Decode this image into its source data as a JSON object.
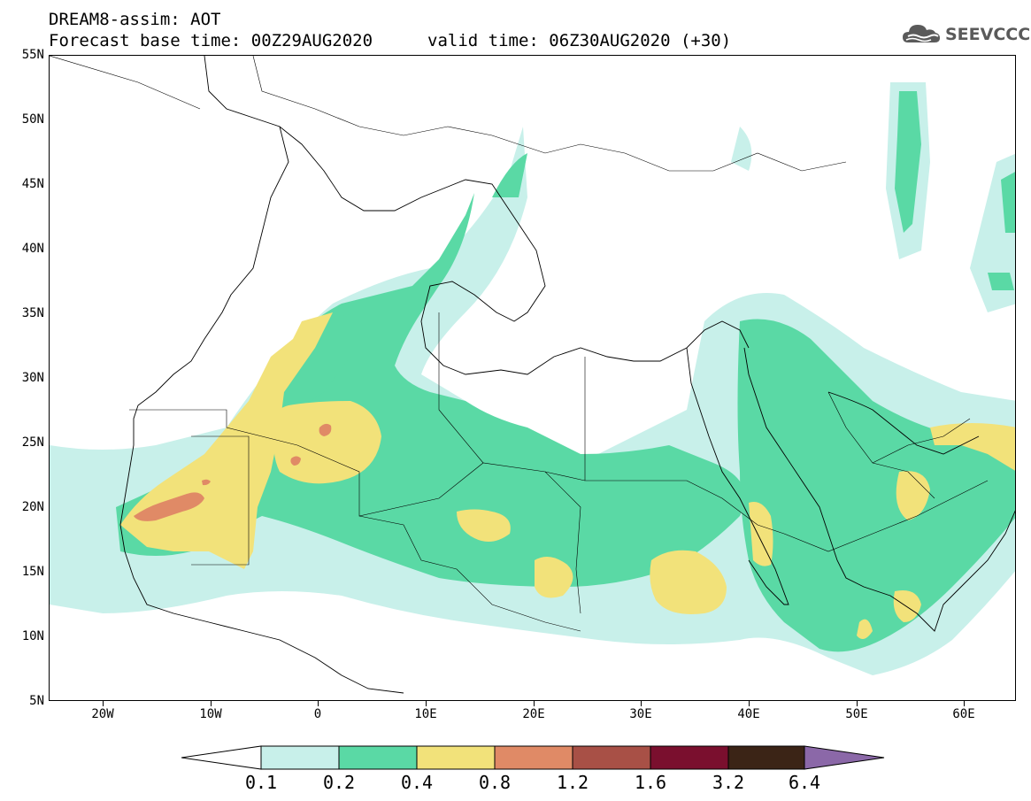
{
  "header": {
    "line1": "DREAM8-assim: AOT",
    "line2": "Forecast base time: 00Z29AUG2020",
    "line3": "valid time: 06Z30AUG2020 (+30)"
  },
  "logo": {
    "text": "SEEVCCC",
    "icon": "cloud-logo-icon"
  },
  "map": {
    "lat_labels": [
      "55N",
      "50N",
      "45N",
      "40N",
      "35N",
      "30N",
      "25N",
      "20N",
      "15N",
      "10N",
      "5N"
    ],
    "lon_labels": [
      "20W",
      "10W",
      "0",
      "10E",
      "20E",
      "30E",
      "40E",
      "50E",
      "60E"
    ]
  },
  "colorbar": {
    "labels": [
      "0.1",
      "0.2",
      "0.4",
      "0.8",
      "1.2",
      "1.6",
      "3.2",
      "6.4"
    ],
    "colors": [
      "#ffffff",
      "#c8f0ea",
      "#5ad9a5",
      "#f2e27a",
      "#e08a66",
      "#a85046",
      "#7a0f2e",
      "#3b2416",
      "#8b68a8"
    ]
  },
  "colors": {
    "c01": "#c8f0ea",
    "c02": "#5ad9a5",
    "c04": "#f2e27a",
    "c08": "#e08a66"
  }
}
